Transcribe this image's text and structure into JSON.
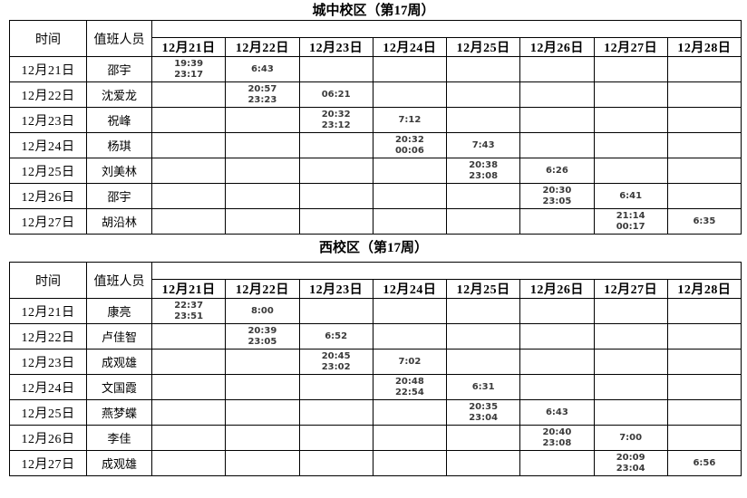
{
  "colors": {
    "border": "#000000",
    "time_text": "#3a3a3a",
    "green_underline": "#008000",
    "background": "#ffffff"
  },
  "tables": [
    {
      "title": "城中校区（第17周）",
      "col_time": "时间",
      "col_person": "值班人员",
      "date_headers": [
        "12月21日",
        "12月22日",
        "12月23日",
        "12月24日",
        "12月25日",
        "12月26日",
        "12月27日",
        "12月28日"
      ],
      "rows": [
        {
          "date": "12月21日",
          "person": "邵宇",
          "cells": [
            "19:39\n23:17",
            "6:43",
            "",
            "",
            "",
            "",
            "",
            ""
          ]
        },
        {
          "date": "12月22日",
          "person": "沈爱龙",
          "cells": [
            "",
            "20:57\n23:23",
            "06:21",
            "",
            "",
            "",
            "",
            ""
          ]
        },
        {
          "date": "12月23日",
          "person": "祝峰",
          "cells": [
            "",
            "",
            "20:32\n23:12",
            "7:12",
            "",
            "",
            "",
            ""
          ]
        },
        {
          "date": "12月24日",
          "person": "杨琪",
          "cells": [
            "",
            "",
            "",
            "20:32\n00:06",
            "7:43",
            "",
            "",
            ""
          ]
        },
        {
          "date": "12月25日",
          "person": "刘美林",
          "cells": [
            "",
            "",
            "",
            "",
            "20:38\n23:08",
            "6:26",
            "",
            ""
          ]
        },
        {
          "date": "12月26日",
          "person": "邵宇",
          "cells": [
            "",
            "",
            "",
            "",
            "",
            "20:30\n23:05",
            "6:41",
            ""
          ]
        },
        {
          "date": "12月27日",
          "person": "胡沿林",
          "cells": [
            "",
            "",
            "",
            "",
            "",
            "",
            "21:14\n00:17",
            "6:35"
          ]
        }
      ]
    },
    {
      "title": "西校区（第17周）",
      "col_time": "时间",
      "col_person": "值班人员",
      "date_headers": [
        "12月21日",
        "12月22日",
        "12月23日",
        "12月24日",
        "12月25日",
        "12月26日",
        "12月27日",
        "12月28日"
      ],
      "rows": [
        {
          "date": "12月21日",
          "person": "康亮",
          "cells": [
            "22:37\n23:51",
            "8:00",
            "",
            "",
            "",
            "",
            "",
            ""
          ]
        },
        {
          "date": "12月22日",
          "person": "卢佳智",
          "cells": [
            "",
            "20:39\n23:05",
            "6:52",
            "",
            "",
            "",
            "",
            ""
          ]
        },
        {
          "date": "12月23日",
          "person": "成观雄",
          "cells": [
            "",
            "",
            "20:45\n23:02",
            "7:02",
            "",
            "",
            "",
            ""
          ]
        },
        {
          "date": "12月24日",
          "person": "文国霞",
          "cells": [
            "",
            "",
            "",
            "20:48\n22:54",
            "6:31",
            "",
            "",
            ""
          ]
        },
        {
          "date": "12月25日",
          "person": "燕梦蝶",
          "cells": [
            "",
            "",
            "",
            "",
            "20:35\n23:04",
            "6:43",
            "",
            ""
          ]
        },
        {
          "date": "12月26日",
          "person": "李佳",
          "cells": [
            "",
            "",
            "",
            "",
            "",
            "20:40\n23:08",
            "7:00",
            ""
          ]
        },
        {
          "date": "12月27日",
          "person": "成观雄",
          "cells": [
            "",
            "",
            "",
            "",
            "",
            "",
            "20:09\n23:04",
            "6:56"
          ],
          "green_underline_col": 6
        }
      ]
    }
  ]
}
